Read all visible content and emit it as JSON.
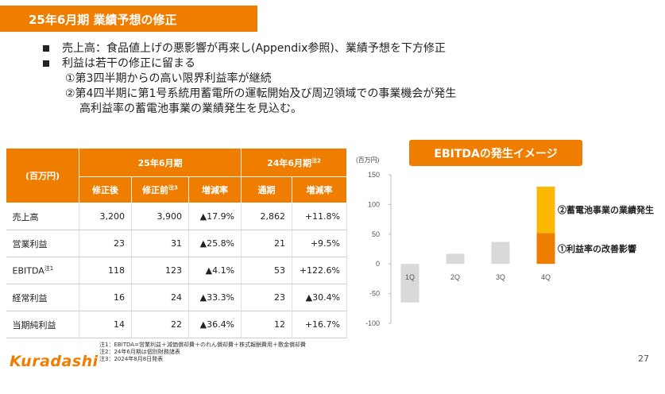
{
  "title": "25年6月期 業績予想の修正",
  "bullets": [
    "売上高：食品値上げの悪影響が再来し(Appendix参照)、業績予想を下方修正",
    "利益は若干の修正に留まる"
  ],
  "sub_points": [
    "①第3四半期からの高い限界利益率が継続",
    "②第4四半期に第1号系統用蓄電所の運転開始及び周辺領域での事業機会が発生",
    "高利益率の蓄電池事業の業績発生を見込む。"
  ],
  "table": {
    "unit_header": "(百万円)",
    "group1": "25年6月期",
    "group2": "24年6月期",
    "group2_note": "注2",
    "columns": [
      "修正後",
      "修正前",
      "増減率",
      "通期",
      "増減率"
    ],
    "column2_note": "注3",
    "rows": [
      {
        "label": "売上高",
        "note": "",
        "values": [
          "3,200",
          "3,900",
          "▲17.9%",
          "2,862",
          "+11.8%"
        ]
      },
      {
        "label": "営業利益",
        "note": "",
        "values": [
          "23",
          "31",
          "▲25.8%",
          "21",
          "+9.5%"
        ]
      },
      {
        "label": "EBITDA",
        "note": "注1",
        "values": [
          "118",
          "123",
          "▲4.1%",
          "53",
          "+122.6%"
        ]
      },
      {
        "label": "経常利益",
        "note": "",
        "values": [
          "16",
          "24",
          "▲33.3%",
          "23",
          "▲30.4%"
        ]
      },
      {
        "label": "当期純利益",
        "note": "",
        "values": [
          "14",
          "22",
          "▲36.4%",
          "12",
          "+16.7%"
        ]
      }
    ]
  },
  "chart_title": "EBITDAの発生イメージ",
  "chart_data": {
    "type": "bar",
    "unit_label": "(百万円)",
    "categories": [
      "1Q",
      "2Q",
      "3Q",
      "4Q"
    ],
    "ylim": [
      -100,
      150
    ],
    "yticks": [
      150,
      100,
      50,
      0,
      -50,
      -100
    ],
    "base_values": [
      -65,
      17,
      37,
      52
    ],
    "stack": {
      "quarter": "4Q",
      "lower": 52,
      "upper": 78
    },
    "annotations": [
      "②蓄電池事業の業績発生",
      "①利益率の改善影響"
    ],
    "colors": {
      "base": "#d9d9d9",
      "lower": "#ef7d00",
      "upper": "#fbb800"
    }
  },
  "notes": [
    "注1：EBITDA=営業利益＋減価償却費＋のれん償却費＋株式報酬費用＋敷金償却費",
    "注2：24年6月期は個別財務諸表",
    "注3：2024年8月8日発表"
  ],
  "logo": "Kuradashi",
  "page_number": "27",
  "accent_color": "#ef7d00"
}
